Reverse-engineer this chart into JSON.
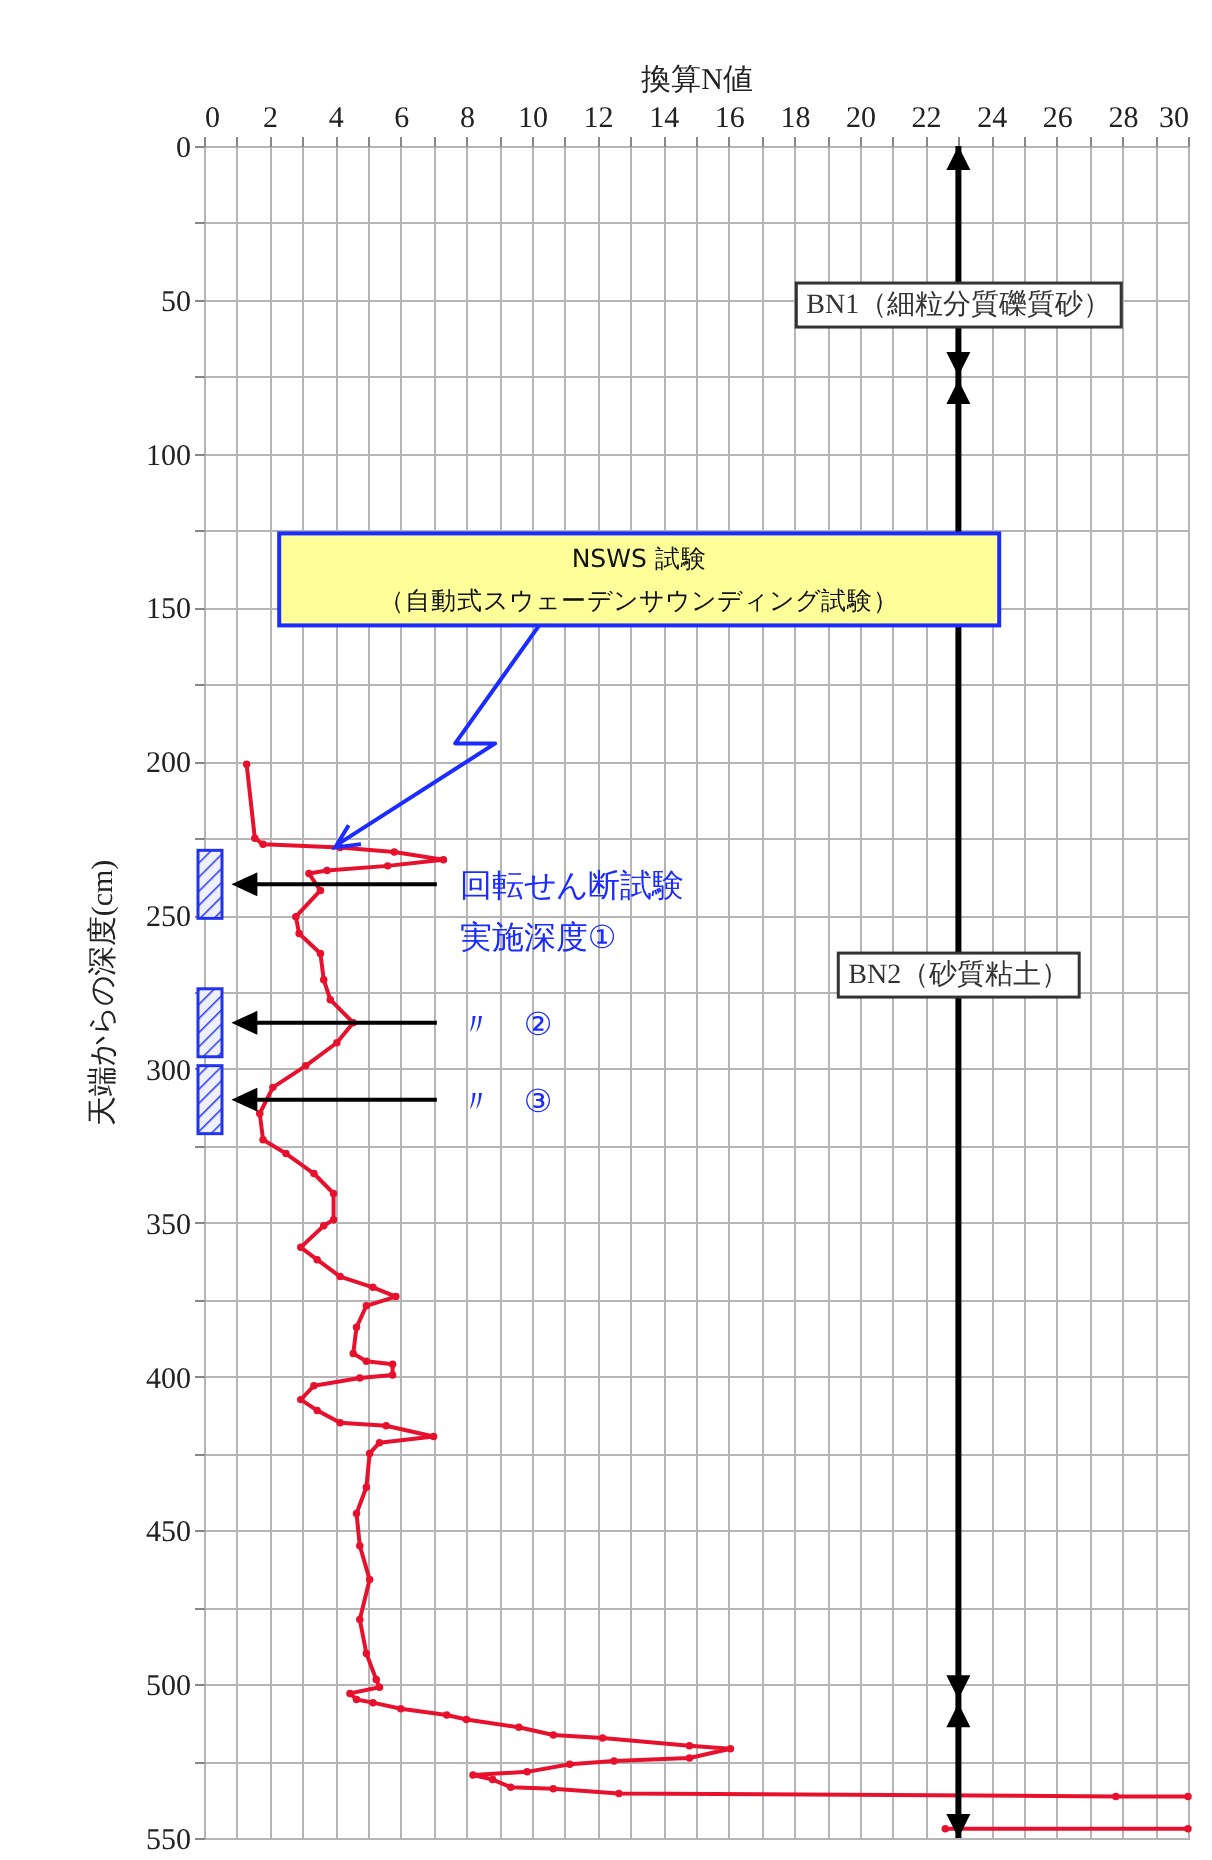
{
  "chart_data": {
    "type": "line",
    "xlabel": "換算N値",
    "ylabel": "天端からの深度(cm)",
    "color": "#e8112d",
    "marker": "circle",
    "grid": true,
    "xlim": [
      0,
      30
    ],
    "ylim": [
      550,
      0
    ],
    "xticks": [
      0,
      {
        "value": 1,
        "label": null
      },
      2,
      {
        "value": 3,
        "label": null
      },
      4,
      {
        "value": 5,
        "label": null
      },
      6,
      {
        "value": 7,
        "label": null
      },
      8,
      {
        "value": 9,
        "label": null
      },
      10,
      {
        "value": 11,
        "label": null
      },
      12,
      {
        "value": 13,
        "label": null
      },
      14,
      {
        "value": 15,
        "label": null
      },
      16,
      {
        "value": 17,
        "label": null
      },
      18,
      {
        "value": 19,
        "label": null
      },
      20,
      {
        "value": 21,
        "label": null
      },
      22,
      {
        "value": 23,
        "label": null
      },
      24,
      {
        "value": 25,
        "label": null
      },
      26,
      {
        "value": 27,
        "label": null
      },
      28,
      {
        "value": 29,
        "label": null
      },
      30
    ],
    "yticks": [
      0,
      {
        "value": 25,
        "label": null
      },
      50,
      {
        "value": 75,
        "label": null
      },
      100,
      {
        "value": 125,
        "label": null
      },
      150,
      {
        "value": 175,
        "label": null
      },
      200,
      {
        "value": 225,
        "label": null
      },
      250,
      {
        "value": 275,
        "label": null
      },
      300,
      {
        "value": 325,
        "label": null
      },
      350,
      {
        "value": 375,
        "label": null
      },
      400,
      {
        "value": 425,
        "label": null
      },
      450,
      {
        "value": 475,
        "label": null
      },
      500,
      {
        "value": 525,
        "label": null
      },
      550
    ],
    "x": [
      1.3,
      1.55,
      1.8,
      4.15,
      5.8,
      7.3,
      5.6,
      3.75,
      3.2,
      3.55,
      2.8,
      2.9,
      3.55,
      3.65,
      3.85,
      4.55,
      4.05,
      3.1,
      2.1,
      1.7,
      1.8,
      2.5,
      3.35,
      3.95,
      3.95,
      3.65,
      2.95,
      3.45,
      4.15,
      5.15,
      5.85,
      4.95,
      4.65,
      4.55,
      4.95,
      5.75,
      5.75,
      4.75,
      3.35,
      2.95,
      3.45,
      4.15,
      5.55,
      7.0,
      5.35,
      5.05,
      4.95,
      4.65,
      4.75,
      5.05,
      4.75,
      4.95,
      5.25,
      5.35,
      4.45,
      4.65,
      5.15,
      6.0,
      7.4,
      8.0,
      9.6,
      10.65,
      12.15,
      14.8,
      16.05,
      14.8,
      12.5,
      11.15,
      9.85,
      8.2,
      8.8,
      9.35,
      10.65,
      12.65,
      27.8,
      30,
      null,
      22.6,
      30
    ],
    "values": [
      201,
      225,
      227,
      228,
      229.5,
      232,
      234,
      235.5,
      236.5,
      242,
      250.5,
      256,
      262.5,
      271,
      277.5,
      285,
      291.5,
      299,
      306,
      314.5,
      323,
      327.5,
      334,
      340.5,
      349,
      351,
      358,
      362,
      367.5,
      371,
      374,
      377,
      384,
      392.5,
      395,
      396,
      399.5,
      400.5,
      403,
      407.5,
      411,
      415,
      416,
      419.5,
      421.5,
      425,
      436,
      444.5,
      455,
      466,
      479,
      490,
      498.5,
      501,
      503,
      505,
      506,
      508,
      510,
      511.5,
      514,
      516.5,
      517.5,
      520,
      521,
      524,
      525,
      526,
      528.5,
      529.5,
      531,
      533.5,
      534,
      535.5,
      536.5,
      536.5,
      null,
      547,
      547
    ],
    "annotations": [
      {
        "text": "NSWS 試験（自動式スウェーデンサウンディング試験）",
        "x": 4,
        "y": 228
      },
      "BN1（細粒分質礫質砂）",
      "BN2（砂質粘土）"
    ],
    "ref_lines": [
      {
        "axis": "x",
        "value": 23,
        "label": null,
        "color": "#000000"
      },
      {
        "axis": "y",
        "value": 240,
        "label": "回転せん断試験実施深度①",
        "color": "#000000"
      },
      {
        "axis": "y",
        "value": 285,
        "label": "〃　②",
        "color": "#000000"
      },
      {
        "axis": "y",
        "value": 310,
        "label": "〃　③",
        "color": "#000000"
      }
    ]
  }
}
